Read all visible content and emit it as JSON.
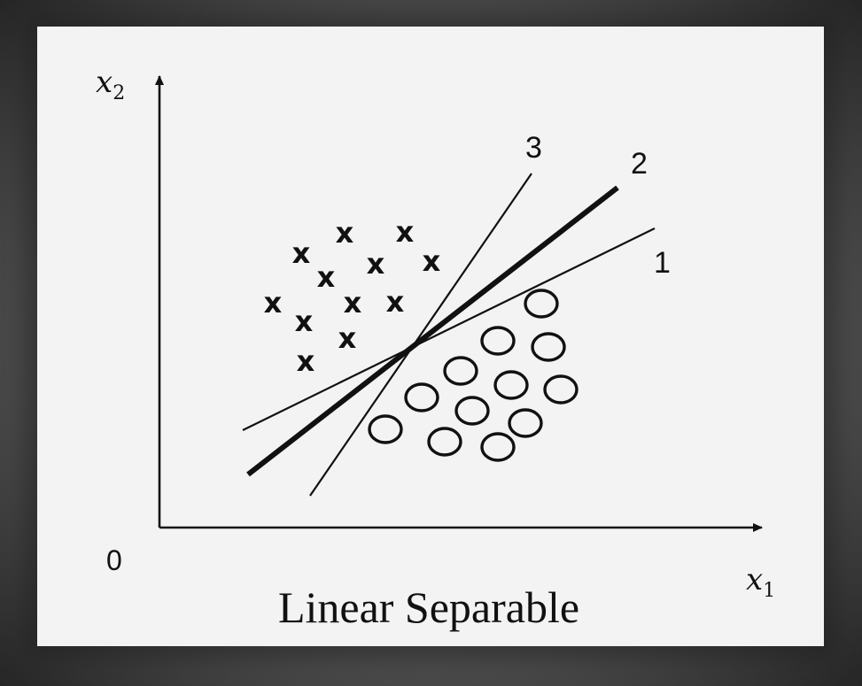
{
  "diagram": {
    "axes": {
      "x_label": "x",
      "x_subscript": "1",
      "y_label": "x",
      "y_subscript": "2",
      "origin_label": "0"
    },
    "lines": [
      {
        "label": "1",
        "weight": "thin"
      },
      {
        "label": "2",
        "weight": "bold"
      },
      {
        "label": "3",
        "weight": "thin"
      }
    ],
    "caption": "Linear Separable",
    "class_x": {
      "marker": "x"
    },
    "class_o": {
      "marker": "o"
    }
  }
}
